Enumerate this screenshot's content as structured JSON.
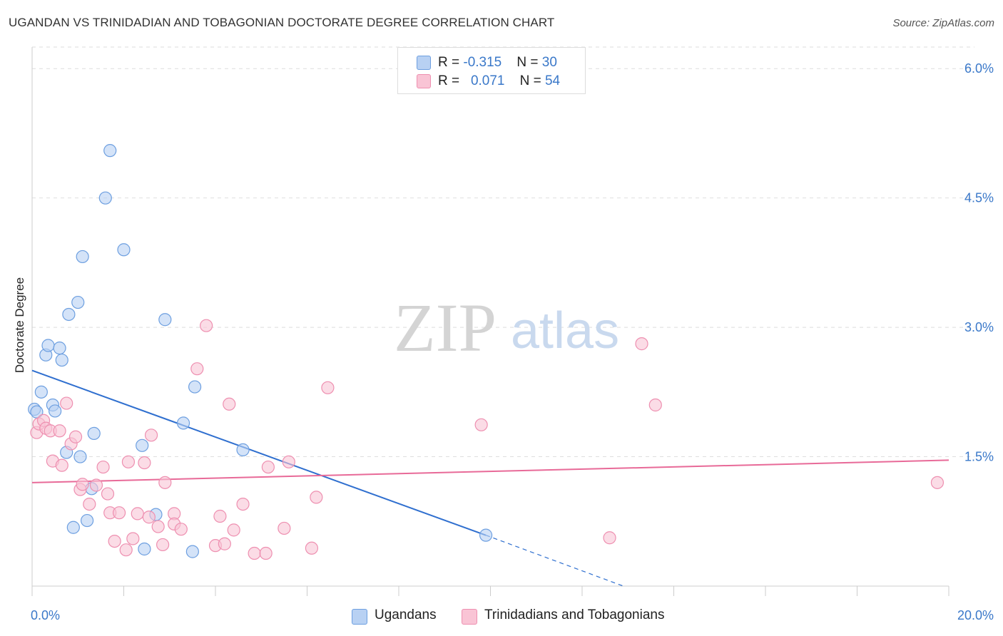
{
  "header": {
    "title": "UGANDAN VS TRINIDADIAN AND TOBAGONIAN DOCTORATE DEGREE CORRELATION CHART",
    "source": "Source: ZipAtlas.com"
  },
  "watermark": {
    "zip": "ZIP",
    "atlas": "atlas"
  },
  "legend": {
    "rows": [
      {
        "r_label": "R = ",
        "r_value": "-0.315",
        "n_label": "N = ",
        "n_value": "30",
        "color": "#b8d1f3",
        "border": "#6d9fe0"
      },
      {
        "r_label": "R = ",
        "r_value": "0.071",
        "n_label": "N = ",
        "n_value": "54",
        "color": "#f9c4d5",
        "border": "#ee8fb0"
      }
    ]
  },
  "bottom_legend": [
    {
      "label": "Ugandans",
      "color": "#b8d1f3",
      "border": "#6d9fe0"
    },
    {
      "label": "Trinidadians and Tobagonians",
      "color": "#f9c4d5",
      "border": "#ee8fb0"
    }
  ],
  "chart_data": {
    "type": "scatter",
    "title": "UGANDAN VS TRINIDADIAN AND TOBAGONIAN DOCTORATE DEGREE CORRELATION CHART",
    "xlabel": "",
    "ylabel": "Doctorate Degree",
    "xlim": [
      0,
      20
    ],
    "ylim": [
      0,
      6.25
    ],
    "x_tick_labels": [
      {
        "value": 0,
        "label": "0.0%"
      },
      {
        "value": 20,
        "label": "20.0%"
      }
    ],
    "y_tick_labels": [
      {
        "value": 1.5,
        "label": "1.5%"
      },
      {
        "value": 3.0,
        "label": "3.0%"
      },
      {
        "value": 4.5,
        "label": "4.5%"
      },
      {
        "value": 6.0,
        "label": "6.0%"
      }
    ],
    "grid": true,
    "series": [
      {
        "name": "Ugandans",
        "color": "#6d9fe0",
        "fill": "#b8d1f3",
        "trend": {
          "x0": 0,
          "y0": 2.5,
          "x1": 9.9,
          "y1": 0.59,
          "dashed_to_x": 12.9,
          "dashed_to_y": 0.0
        },
        "points": [
          [
            0.05,
            2.05
          ],
          [
            0.1,
            2.02
          ],
          [
            0.2,
            2.25
          ],
          [
            0.3,
            2.68
          ],
          [
            0.35,
            2.79
          ],
          [
            0.45,
            2.1
          ],
          [
            0.5,
            2.03
          ],
          [
            0.6,
            2.76
          ],
          [
            0.65,
            2.62
          ],
          [
            0.75,
            1.55
          ],
          [
            0.8,
            3.15
          ],
          [
            0.9,
            0.68
          ],
          [
            1.0,
            3.29
          ],
          [
            1.05,
            1.5
          ],
          [
            1.1,
            3.82
          ],
          [
            1.2,
            0.76
          ],
          [
            1.3,
            1.13
          ],
          [
            1.35,
            1.77
          ],
          [
            1.6,
            4.5
          ],
          [
            1.7,
            5.05
          ],
          [
            2.0,
            3.9
          ],
          [
            2.4,
            1.63
          ],
          [
            2.45,
            0.43
          ],
          [
            2.7,
            0.83
          ],
          [
            2.9,
            3.09
          ],
          [
            3.5,
            0.4
          ],
          [
            3.55,
            2.31
          ],
          [
            3.3,
            1.89
          ],
          [
            4.6,
            1.58
          ],
          [
            9.9,
            0.59
          ]
        ]
      },
      {
        "name": "Trinidadians and Tobagonians",
        "color": "#ee8fb0",
        "fill": "#f9c4d5",
        "trend": {
          "x0": 0,
          "y0": 1.2,
          "x1": 20,
          "y1": 1.46
        },
        "points": [
          [
            0.1,
            1.78
          ],
          [
            0.15,
            1.88
          ],
          [
            0.25,
            1.92
          ],
          [
            0.3,
            1.83
          ],
          [
            0.4,
            1.8
          ],
          [
            0.45,
            1.45
          ],
          [
            0.6,
            1.8
          ],
          [
            0.65,
            1.4
          ],
          [
            0.75,
            2.12
          ],
          [
            0.85,
            1.65
          ],
          [
            0.95,
            1.73
          ],
          [
            1.05,
            1.12
          ],
          [
            1.1,
            1.18
          ],
          [
            1.25,
            0.95
          ],
          [
            1.4,
            1.17
          ],
          [
            1.55,
            1.38
          ],
          [
            1.65,
            1.07
          ],
          [
            1.7,
            0.85
          ],
          [
            1.8,
            0.52
          ],
          [
            1.9,
            0.85
          ],
          [
            2.05,
            0.42
          ],
          [
            2.1,
            1.44
          ],
          [
            2.2,
            0.55
          ],
          [
            2.3,
            0.84
          ],
          [
            2.45,
            1.43
          ],
          [
            2.55,
            0.8
          ],
          [
            2.6,
            1.75
          ],
          [
            2.75,
            0.69
          ],
          [
            2.85,
            0.48
          ],
          [
            2.9,
            1.2
          ],
          [
            3.1,
            0.84
          ],
          [
            3.1,
            0.72
          ],
          [
            3.25,
            0.66
          ],
          [
            3.6,
            2.52
          ],
          [
            3.8,
            3.02
          ],
          [
            4.0,
            0.47
          ],
          [
            4.1,
            0.81
          ],
          [
            4.2,
            0.49
          ],
          [
            4.3,
            2.11
          ],
          [
            4.4,
            0.65
          ],
          [
            4.6,
            0.95
          ],
          [
            4.85,
            0.38
          ],
          [
            5.1,
            0.38
          ],
          [
            5.15,
            1.38
          ],
          [
            5.5,
            0.67
          ],
          [
            5.6,
            1.44
          ],
          [
            6.1,
            0.44
          ],
          [
            6.2,
            1.03
          ],
          [
            6.45,
            2.3
          ],
          [
            9.8,
            1.87
          ],
          [
            12.6,
            0.56
          ],
          [
            13.3,
            2.81
          ],
          [
            13.6,
            2.1
          ],
          [
            19.75,
            1.2
          ]
        ]
      }
    ]
  }
}
